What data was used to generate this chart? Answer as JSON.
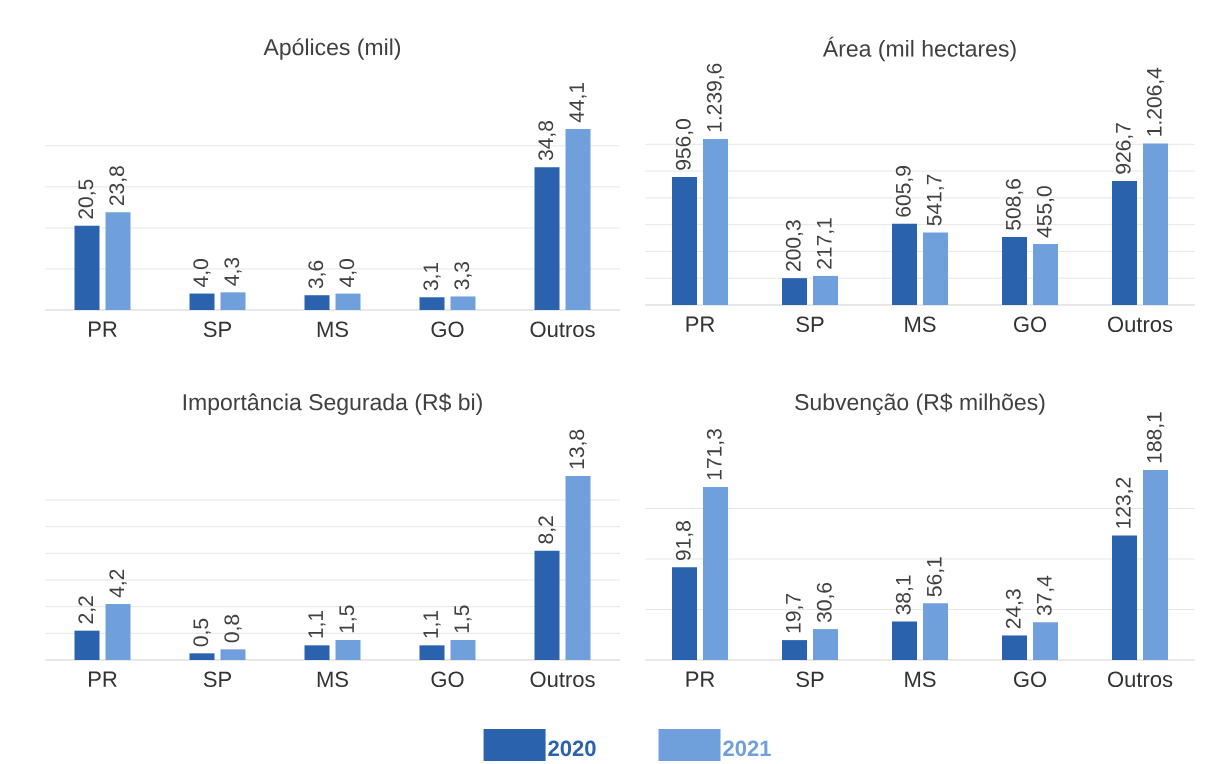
{
  "chart_data": [
    {
      "type": "bar",
      "title": "Apólices (mil)",
      "categories": [
        "PR",
        "SP",
        "MS",
        "GO",
        "Outros"
      ],
      "grid": "y",
      "tick_labels": "x",
      "legend": false,
      "series": [
        {
          "color": "#2a62ae",
          "values": [
            20.5,
            4.0,
            3.6,
            3.1,
            34.8
          ],
          "value_labels": [
            "20,5",
            "4,0",
            "3,6",
            "3,1",
            "34,8"
          ]
        },
        {
          "color": "#6fa0dc",
          "values": [
            23.8,
            4.3,
            4.0,
            3.3,
            44.1
          ],
          "value_labels": [
            "23,8",
            "4,3",
            "4,0",
            "3,3",
            "44,1"
          ]
        }
      ]
    },
    {
      "type": "bar",
      "title": "Área (mil hectares)",
      "categories": [
        "PR",
        "SP",
        "MS",
        "GO",
        "Outros"
      ],
      "grid": "y",
      "tick_labels": "x",
      "legend": false,
      "series": [
        {
          "color": "#2a62ae",
          "values": [
            956.0,
            200.3,
            605.9,
            508.6,
            926.7
          ],
          "value_labels": [
            "956,0",
            "200,3",
            "605,9",
            "508,6",
            "926,7"
          ]
        },
        {
          "color": "#6fa0dc",
          "values": [
            1239.6,
            217.1,
            541.7,
            455.0,
            1206.4
          ],
          "value_labels": [
            "1.239,6",
            "217,1",
            "541,7",
            "455,0",
            "1.206,4"
          ]
        }
      ]
    },
    {
      "type": "bar",
      "title": "Importância Segurada (R$ bi)",
      "categories": [
        "PR",
        "SP",
        "MS",
        "GO",
        "Outros"
      ],
      "grid": "y",
      "tick_labels": "x",
      "legend": false,
      "series": [
        {
          "color": "#2a62ae",
          "values": [
            2.2,
            0.5,
            1.1,
            1.1,
            8.2
          ],
          "value_labels": [
            "2,2",
            "0,5",
            "1,1",
            "1,1",
            "8,2"
          ]
        },
        {
          "color": "#6fa0dc",
          "values": [
            4.2,
            0.8,
            1.5,
            1.5,
            13.8
          ],
          "value_labels": [
            "4,2",
            "0,8",
            "1,5",
            "1,5",
            "13,8"
          ]
        }
      ]
    },
    {
      "type": "bar",
      "title": "Subvenção (R$ milhões)",
      "categories": [
        "PR",
        "SP",
        "MS",
        "GO",
        "Outros"
      ],
      "grid": "y",
      "tick_labels": "x",
      "legend": "bottom",
      "series": [
        {
          "name": "2020",
          "color": "#2a62ae",
          "values": [
            91.8,
            19.7,
            38.1,
            24.3,
            123.2
          ],
          "value_labels": [
            "91,8",
            "19,7",
            "38,1",
            "24,3",
            "123,2"
          ]
        },
        {
          "name": "2021",
          "color": "#6fa0dc",
          "values": [
            171.3,
            30.6,
            56.1,
            37.4,
            188.1
          ],
          "value_labels": [
            "171,3",
            "30,6",
            "56,1",
            "37,4",
            "188,1"
          ]
        }
      ]
    }
  ]
}
